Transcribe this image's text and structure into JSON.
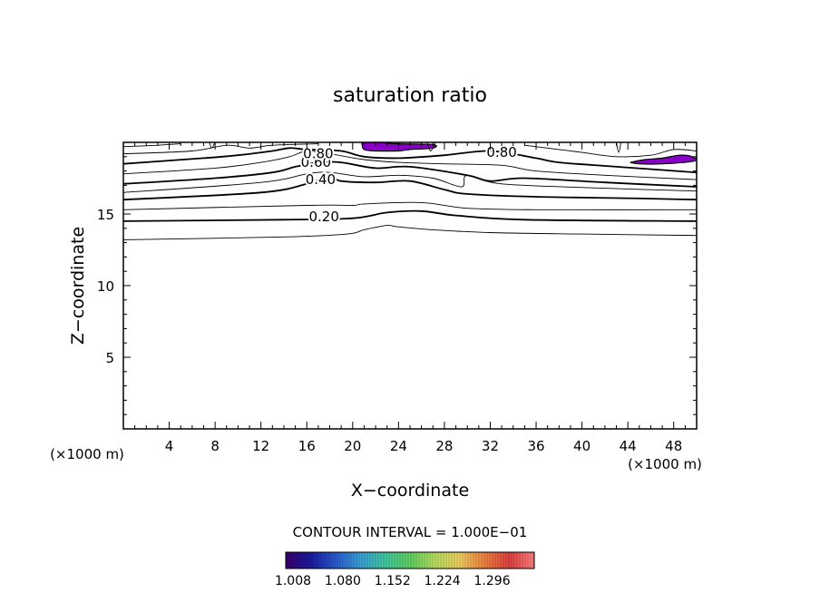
{
  "chart_data": {
    "type": "contour",
    "title": "saturation ratio",
    "xlabel": "X−coordinate",
    "ylabel": "Z−coordinate",
    "x_unit_left": "(×1000 m)",
    "x_unit_right": "(×1000 m)",
    "xlim": [
      0,
      50
    ],
    "ylim": [
      0,
      20
    ],
    "xticks": [
      4,
      8,
      12,
      16,
      20,
      24,
      28,
      32,
      36,
      40,
      44,
      48
    ],
    "yticks": [
      5,
      10,
      15
    ],
    "contour_interval_text": "CONTOUR INTERVAL = 1.000E−01",
    "contour_labels": [
      {
        "text": "0.20",
        "x": 17.5,
        "z": 14.8
      },
      {
        "text": "0.40",
        "x": 17.2,
        "z": 17.4
      },
      {
        "text": "0.60",
        "x": 16.8,
        "z": 18.6
      },
      {
        "text": "0.80",
        "x": 17.0,
        "z": 19.2
      },
      {
        "text": "0.80",
        "x": 33.0,
        "z": 19.3
      }
    ],
    "contours": [
      {
        "level": 0.1,
        "bold": false,
        "points": [
          [
            0,
            13.2
          ],
          [
            14,
            13.4
          ],
          [
            19.5,
            13.6
          ],
          [
            21,
            13.9
          ],
          [
            23,
            14.2
          ],
          [
            24,
            14.1
          ],
          [
            27,
            13.9
          ],
          [
            32,
            13.7
          ],
          [
            40,
            13.6
          ],
          [
            50,
            13.5
          ]
        ]
      },
      {
        "level": 0.2,
        "bold": true,
        "points": [
          [
            0,
            14.5
          ],
          [
            14,
            14.6
          ],
          [
            20,
            14.7
          ],
          [
            23,
            15.1
          ],
          [
            26,
            15.2
          ],
          [
            29,
            14.9
          ],
          [
            35,
            14.6
          ],
          [
            50,
            14.5
          ]
        ]
      },
      {
        "level": 0.3,
        "bold": false,
        "points": [
          [
            0,
            15.3
          ],
          [
            16,
            15.6
          ],
          [
            20,
            15.6
          ],
          [
            21,
            15.7
          ],
          [
            26,
            15.8
          ],
          [
            30,
            15.4
          ],
          [
            36,
            15.3
          ],
          [
            50,
            15.3
          ]
        ]
      },
      {
        "level": 0.4,
        "bold": true,
        "points": [
          [
            0,
            16.0
          ],
          [
            12,
            16.5
          ],
          [
            16,
            17.1
          ],
          [
            18,
            17.6
          ],
          [
            19,
            17.3
          ],
          [
            22,
            17.2
          ],
          [
            25,
            17.3
          ],
          [
            28,
            16.7
          ],
          [
            30,
            16.4
          ],
          [
            36,
            16.2
          ],
          [
            44,
            16.1
          ],
          [
            50,
            16.0
          ]
        ]
      },
      {
        "level": 0.5,
        "bold": false,
        "points": [
          [
            0,
            16.5
          ],
          [
            12,
            17.2
          ],
          [
            16,
            17.8
          ],
          [
            18,
            17.9
          ],
          [
            21,
            17.6
          ],
          [
            24,
            17.7
          ],
          [
            27,
            17.5
          ],
          [
            29.5,
            16.9
          ],
          [
            30,
            17.7
          ],
          [
            33,
            17.1
          ],
          [
            42,
            16.8
          ],
          [
            50,
            16.6
          ]
        ]
      },
      {
        "level": 0.6,
        "bold": true,
        "points": [
          [
            0,
            17.1
          ],
          [
            8,
            17.5
          ],
          [
            13,
            17.9
          ],
          [
            15,
            18.3
          ],
          [
            17,
            18.6
          ],
          [
            19,
            18.6
          ],
          [
            22,
            18.2
          ],
          [
            25,
            18.3
          ],
          [
            30,
            17.7
          ],
          [
            32,
            17.3
          ],
          [
            35,
            17.5
          ],
          [
            42,
            17.2
          ],
          [
            50,
            16.9
          ]
        ]
      },
      {
        "level": 0.7,
        "bold": false,
        "points": [
          [
            0,
            17.8
          ],
          [
            8,
            18.2
          ],
          [
            12,
            18.6
          ],
          [
            14.5,
            19.0
          ],
          [
            16,
            19.4
          ],
          [
            18,
            19.2
          ],
          [
            21,
            18.8
          ],
          [
            24,
            18.6
          ],
          [
            28,
            18.5
          ],
          [
            33,
            18.4
          ],
          [
            36,
            18.0
          ],
          [
            42,
            17.7
          ],
          [
            50,
            17.4
          ]
        ]
      },
      {
        "level": 0.8,
        "bold": true,
        "points": [
          [
            0,
            18.5
          ],
          [
            7,
            18.9
          ],
          [
            10,
            19.1
          ],
          [
            13,
            19.4
          ],
          [
            14.5,
            19.6
          ],
          [
            16,
            19.5
          ],
          [
            19,
            19.4
          ],
          [
            21,
            19.0
          ],
          [
            24,
            18.9
          ],
          [
            28,
            19.1
          ],
          [
            32,
            19.4
          ],
          [
            36,
            18.9
          ],
          [
            38,
            18.6
          ],
          [
            43,
            18.3
          ],
          [
            50,
            17.9
          ]
        ]
      },
      {
        "level": 0.9,
        "bold": false,
        "points": [
          [
            0,
            19.2
          ],
          [
            6,
            19.4
          ],
          [
            9,
            19.8
          ],
          [
            11,
            19.6
          ],
          [
            13,
            19.8
          ],
          [
            17,
            19.9
          ]
        ]
      },
      {
        "level": 0.9,
        "bold": false,
        "points": [
          [
            35,
            19.8
          ],
          [
            38,
            19.5
          ],
          [
            40,
            19.3
          ],
          [
            43,
            19.0
          ],
          [
            46,
            19.1
          ],
          [
            48,
            19.5
          ],
          [
            50,
            19.4
          ]
        ]
      },
      {
        "level": 0.9,
        "bold": false,
        "points": [
          [
            0,
            19.7
          ],
          [
            3,
            19.8
          ],
          [
            5,
            19.9
          ]
        ]
      },
      {
        "level": 0.9,
        "bold": false,
        "points": [
          [
            7.5,
            20.0
          ],
          [
            7.7,
            19.6
          ],
          [
            8,
            20.0
          ]
        ]
      },
      {
        "level": 0.9,
        "bold": false,
        "points": [
          [
            26.5,
            20.0
          ],
          [
            26.8,
            19.4
          ],
          [
            27.2,
            20.0
          ]
        ]
      },
      {
        "level": 0.9,
        "bold": false,
        "points": [
          [
            43,
            20.0
          ],
          [
            43.2,
            19.3
          ],
          [
            43.4,
            20.0
          ]
        ]
      }
    ],
    "filled_regions": [
      {
        "color": "#8a00c8",
        "points": [
          [
            20.8,
            19.95
          ],
          [
            21.0,
            19.5
          ],
          [
            22,
            19.4
          ],
          [
            24,
            19.4
          ],
          [
            25,
            19.5
          ],
          [
            27,
            19.6
          ],
          [
            27,
            19.85
          ],
          [
            24,
            19.9
          ],
          [
            22,
            20.0
          ]
        ]
      },
      {
        "color": "#8a00c8",
        "points": [
          [
            44.2,
            18.6
          ],
          [
            45,
            18.5
          ],
          [
            47,
            18.5
          ],
          [
            49.8,
            18.7
          ],
          [
            49.6,
            19.0
          ],
          [
            48.5,
            19.1
          ],
          [
            47,
            18.9
          ],
          [
            45.5,
            18.8
          ]
        ]
      }
    ],
    "colorbar": {
      "ticks": [
        "1.008",
        "1.080",
        "1.152",
        "1.224",
        "1.296"
      ],
      "colors": [
        "#3a006a",
        "#1a1aa0",
        "#2a5ad0",
        "#3aa0d8",
        "#40c8a0",
        "#60d060",
        "#b8e060",
        "#f0d060",
        "#f08040",
        "#e04040",
        "#ff8080"
      ]
    }
  }
}
